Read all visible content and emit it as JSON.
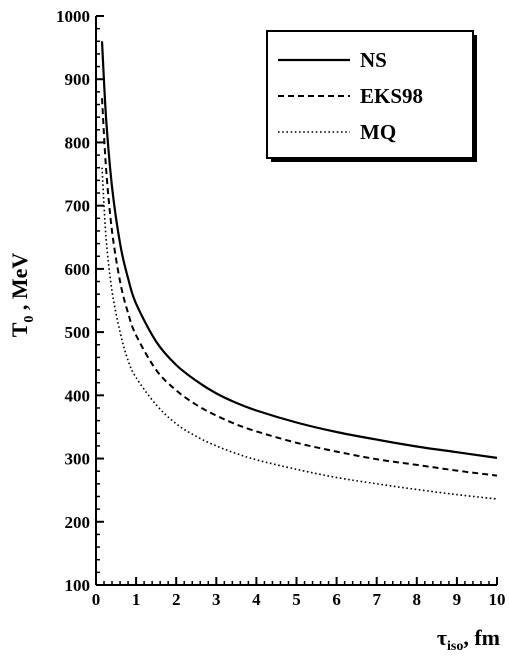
{
  "chart_data": {
    "type": "line",
    "xlabel_main": "τ",
    "xlabel_sub": "iso",
    "xlabel_rest": ", fm",
    "ylabel_main": "T",
    "ylabel_sub": "0",
    "ylabel_rest": " , MeV",
    "xlim": [
      0,
      10
    ],
    "ylim": [
      100,
      1000
    ],
    "x_ticks": [
      0,
      1,
      2,
      3,
      4,
      5,
      6,
      7,
      8,
      9,
      10
    ],
    "y_ticks": [
      100,
      200,
      300,
      400,
      500,
      600,
      700,
      800,
      900,
      1000
    ],
    "legend_position": "top-right",
    "series": [
      {
        "name": "NS",
        "style": "solid",
        "x": [
          0.15,
          0.25,
          0.4,
          0.6,
          0.8,
          1,
          1.5,
          2,
          2.5,
          3,
          3.5,
          4,
          5,
          6,
          7,
          8,
          9,
          10
        ],
        "y": [
          960,
          840,
          730,
          640,
          585,
          545,
          485,
          448,
          423,
          403,
          388,
          376,
          357,
          342,
          330,
          319,
          310,
          301
        ]
      },
      {
        "name": "EKS98",
        "style": "dashed",
        "x": [
          0.15,
          0.25,
          0.4,
          0.6,
          0.8,
          1,
          1.5,
          2,
          2.5,
          3,
          3.5,
          4,
          5,
          6,
          7,
          8,
          9,
          10
        ],
        "y": [
          870,
          760,
          660,
          580,
          530,
          495,
          440,
          408,
          385,
          368,
          354,
          343,
          325,
          311,
          299,
          290,
          281,
          273
        ]
      },
      {
        "name": "MQ",
        "style": "dotted",
        "x": [
          0.15,
          0.25,
          0.4,
          0.6,
          0.8,
          1,
          1.5,
          2,
          2.5,
          3,
          3.5,
          4,
          5,
          6,
          7,
          8,
          9,
          10
        ],
        "y": [
          760,
          650,
          565,
          500,
          455,
          428,
          385,
          355,
          335,
          320,
          308,
          298,
          283,
          270,
          260,
          251,
          243,
          236
        ]
      }
    ]
  }
}
